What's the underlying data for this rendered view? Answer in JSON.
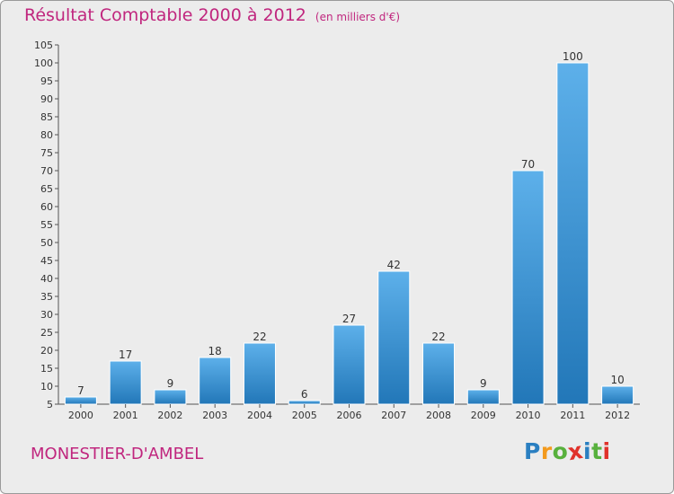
{
  "header": {
    "title": "Résultat Comptable 2000 à 2012",
    "unit": "(en milliers d'€)"
  },
  "location": "MONESTIER-D'AMBEL",
  "brand": {
    "letters": [
      "P",
      "r",
      "o",
      "x",
      "i",
      "t",
      "i"
    ],
    "colors": [
      "#2a7fc1",
      "#f39a1d",
      "#58b13d",
      "#e0322b",
      "#2a7fc1",
      "#58b13d",
      "#e0322b"
    ]
  },
  "colors": {
    "bar_top": "#5db0ea",
    "bar_bottom": "#2277b8",
    "title": "#c0267e",
    "axis": "#555555"
  },
  "chart_data": {
    "type": "bar",
    "title": "Résultat Comptable 2000 à 2012",
    "subtitle": "(en milliers d'€)",
    "categories": [
      "2000",
      "2001",
      "2002",
      "2003",
      "2004",
      "2005",
      "2006",
      "2007",
      "2008",
      "2009",
      "2010",
      "2011",
      "2012"
    ],
    "values": [
      7,
      17,
      9,
      18,
      22,
      6,
      27,
      42,
      22,
      9,
      70,
      100,
      10
    ],
    "ylim": [
      5,
      105
    ],
    "yticks": [
      5,
      10,
      15,
      20,
      25,
      30,
      35,
      40,
      45,
      50,
      55,
      60,
      65,
      70,
      75,
      80,
      85,
      90,
      95,
      100,
      105
    ],
    "grid": false,
    "legend": "none"
  }
}
